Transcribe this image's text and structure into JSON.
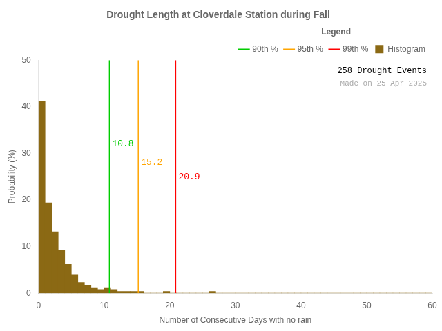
{
  "chart_data": {
    "type": "histogram",
    "title": "Drought Length at Cloverdale Station during Fall",
    "x_label": "Number of Consecutive Days with no rain",
    "y_label": "Probability (%)",
    "xlim": [
      0,
      60
    ],
    "ylim": [
      0,
      50
    ],
    "xticks": [
      0,
      10,
      20,
      30,
      40,
      50,
      60
    ],
    "yticks": [
      0,
      10,
      20,
      30,
      40,
      50
    ],
    "grid": false,
    "legend": "upper right",
    "legend_title": "Legend",
    "bins": [
      0,
      1,
      2,
      3,
      4,
      5,
      6,
      7,
      8,
      9,
      10,
      11,
      12,
      13,
      14,
      15,
      16,
      17,
      18,
      19,
      20,
      21,
      22,
      23,
      24,
      25,
      26,
      27,
      28,
      29,
      30,
      31,
      32,
      33,
      34,
      35,
      36,
      37,
      38,
      39,
      40,
      41,
      42,
      43,
      44,
      45,
      46,
      47,
      48,
      49,
      50,
      51,
      52,
      53,
      54,
      55,
      56,
      57,
      58,
      59,
      60
    ],
    "series": [
      {
        "name": "90th %",
        "type": "vline",
        "color": "#00CC00",
        "x": 10.8,
        "label": "10.8",
        "label_y": 32
      },
      {
        "name": "95th %",
        "type": "vline",
        "color": "#FFA500",
        "x": 15.2,
        "label": "15.2",
        "label_y": 28
      },
      {
        "name": "99th %",
        "type": "vline",
        "color": "#FF0000",
        "x": 20.9,
        "label": "20.9",
        "label_y": 25
      },
      {
        "name": "Histogram",
        "type": "bar",
        "color": "#8B6914",
        "values": [
          41.1,
          19.4,
          13.2,
          9.3,
          6.2,
          3.9,
          2.3,
          1.6,
          1.2,
          0.8,
          1.2,
          0.8,
          0.4,
          0.4,
          0.4,
          0.4,
          0.0,
          0.0,
          0.0,
          0.4,
          0.0,
          0.0,
          0.0,
          0.0,
          0.0,
          0.0,
          0.4,
          0.0,
          0.0,
          0.0,
          0.0,
          0.0,
          0.0,
          0.0,
          0.0,
          0.0,
          0.0,
          0.0,
          0.0,
          0.0,
          0.0,
          0.0,
          0.0,
          0.0,
          0.0,
          0.0,
          0.0,
          0.0,
          0.0,
          0.0,
          0.0,
          0.0,
          0.0,
          0.0,
          0.0,
          0.0,
          0.0,
          0.0,
          0.0,
          0.0
        ]
      }
    ],
    "annotations": [
      {
        "text": "258 Drought Events",
        "color": "#000000"
      },
      {
        "text": "Made on 25 Apr 2025",
        "color": "#aaaaaa"
      }
    ]
  }
}
